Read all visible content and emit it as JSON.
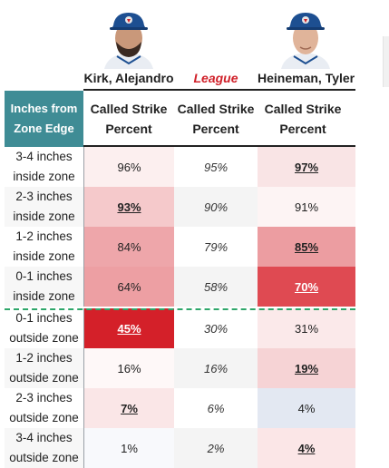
{
  "players": [
    {
      "name": "Kirk, Alejandro",
      "avatar": "player-headshot"
    },
    {
      "name": "Heineman, Tyler",
      "avatar": "player-headshot"
    }
  ],
  "league_label": "League",
  "row_header_title": "Inches from Zone Edge",
  "column_headers": [
    "Called Strike Percent",
    "Called Strike Percent",
    "Called Strike Percent"
  ],
  "rows": [
    {
      "label": "3-4 inches inside zone",
      "kirk": "96%",
      "league": "95%",
      "heineman": "97%"
    },
    {
      "label": "2-3 inches inside zone",
      "kirk": "93%",
      "league": "90%",
      "heineman": "91%"
    },
    {
      "label": "1-2 inches inside zone",
      "kirk": "84%",
      "league": "79%",
      "heineman": "85%"
    },
    {
      "label": "0-1 inches inside zone",
      "kirk": "64%",
      "league": "58%",
      "heineman": "70%"
    },
    {
      "label": "0-1 inches outside zone",
      "kirk": "45%",
      "league": "30%",
      "heineman": "31%"
    },
    {
      "label": "1-2 inches outside zone",
      "kirk": "16%",
      "league": "16%",
      "heineman": "19%"
    },
    {
      "label": "2-3 inches outside zone",
      "kirk": "7%",
      "league": "6%",
      "heineman": "4%"
    },
    {
      "label": "3-4 inches outside zone",
      "kirk": "1%",
      "league": "2%",
      "heineman": "4%"
    }
  ],
  "colors": {
    "header_teal": "#3f8c95",
    "league_red": "#d0212a",
    "zone_line_green": "#2ea66a"
  }
}
